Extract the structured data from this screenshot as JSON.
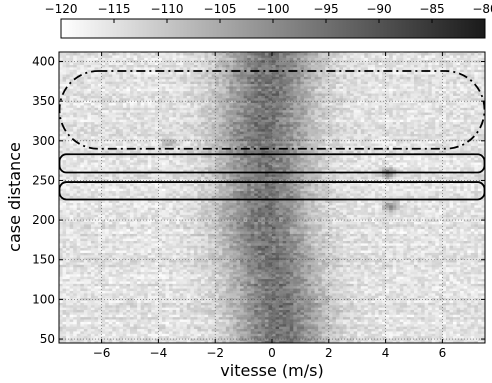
{
  "chart_data": {
    "type": "heatmap",
    "title": "",
    "xlabel": "vitesse (m/s)",
    "ylabel": "case distance",
    "xlim": [
      -7.5,
      7.5
    ],
    "ylim": [
      45,
      412
    ],
    "xticks": [
      -6,
      -4,
      -2,
      0,
      2,
      4,
      6
    ],
    "yticks": [
      50,
      100,
      150,
      200,
      250,
      300,
      350,
      400
    ],
    "grid": true,
    "colorbar": {
      "range": [
        -120,
        -80
      ],
      "ticks": [
        -120,
        -115,
        -110,
        -105,
        -100,
        -95,
        -90,
        -85,
        -80
      ],
      "colormap": "gray-reversed",
      "position": "top"
    },
    "intensity_model": {
      "background_level": -115,
      "ridge_peak_level": -93,
      "ridge_halfwidth_ms": 1.6,
      "ridge_center_by_distance": [
        {
          "distance": 50,
          "velocity": 0.3
        },
        {
          "distance": 100,
          "velocity": 0.2
        },
        {
          "distance": 150,
          "velocity": 0.0
        },
        {
          "distance": 200,
          "velocity": -0.3
        },
        {
          "distance": 250,
          "velocity": -0.2
        },
        {
          "distance": 300,
          "velocity": -0.3
        },
        {
          "distance": 350,
          "velocity": -0.2
        },
        {
          "distance": 400,
          "velocity": -0.1
        }
      ],
      "hotspots": [
        {
          "velocity": 4.1,
          "distance": 258,
          "level": -95
        },
        {
          "velocity": 4.2,
          "distance": 216,
          "level": -96
        },
        {
          "velocity": -3.6,
          "distance": 297,
          "level": -104
        }
      ]
    },
    "annotations": [
      {
        "name": "region-dashdot",
        "style": "dash-dot",
        "x": [
          -7.5,
          7.5
        ],
        "y": [
          290,
          388
        ]
      },
      {
        "name": "region-solid-upper",
        "style": "solid",
        "x": [
          -7.5,
          7.5
        ],
        "y": [
          260,
          283
        ]
      },
      {
        "name": "region-solid-lower",
        "style": "solid",
        "x": [
          -7.5,
          7.5
        ],
        "y": [
          226,
          248
        ]
      }
    ]
  }
}
